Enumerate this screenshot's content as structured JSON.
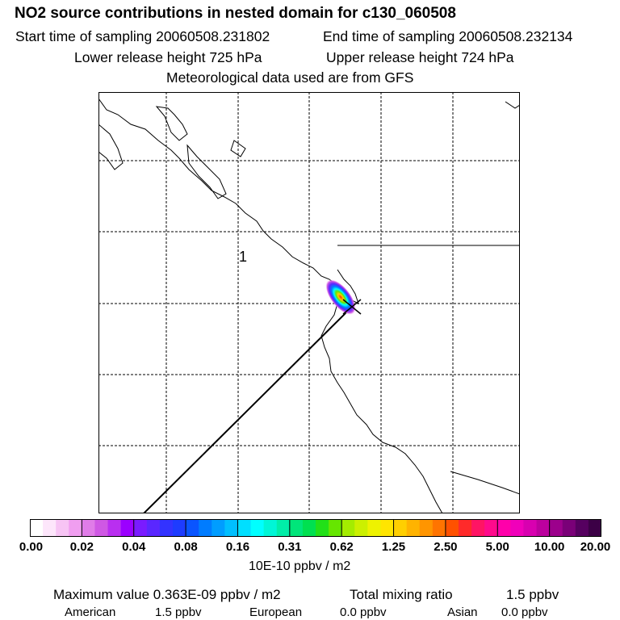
{
  "header": {
    "title": "NO2 source contributions in nested domain for c130_060508",
    "start_label": "Start time of sampling 20060508.231802",
    "end_label": "End time of sampling 20060508.232134",
    "lower_label": "Lower release height  725 hPa",
    "upper_label": "Upper release height  724 hPa",
    "met_label": "Meteorological data used are from GFS"
  },
  "map": {
    "region_marker": "1"
  },
  "colorbar": {
    "tick_labels": [
      "0.00",
      "0.02",
      "0.04",
      "0.08",
      "0.16",
      "0.31",
      "0.62",
      "1.25",
      "2.50",
      "5.00",
      "10.00",
      "20.00"
    ],
    "unit": "10E-10 ppbv / m2",
    "colors": [
      "#ffffff",
      "#fde6fb",
      "#f7c4f4",
      "#f09ef0",
      "#e07ce8",
      "#cf58e4",
      "#b92ff0",
      "#9b00ff",
      "#7a1bff",
      "#5a27ff",
      "#3333ff",
      "#1e3cff",
      "#0a55ff",
      "#007cff",
      "#009dff",
      "#00bfff",
      "#00dfff",
      "#00ffff",
      "#00f6d6",
      "#00eea8",
      "#00e57a",
      "#00e050",
      "#22e018",
      "#66e600",
      "#a4ec00",
      "#ccf000",
      "#eef200",
      "#ffe500",
      "#ffcf00",
      "#ffb300",
      "#ff9500",
      "#ff7400",
      "#ff5100",
      "#ff2a2a",
      "#ff1464",
      "#ff0a8c",
      "#ff00aa",
      "#f000ba",
      "#d800b0",
      "#bc009e",
      "#9c008c",
      "#7a0078",
      "#560060",
      "#3c0046"
    ]
  },
  "summary": {
    "max_label": "Maximum value  0.363E-09 ppbv / m2",
    "total_label": "Total mixing ratio",
    "total_value": "1.5 ppbv"
  },
  "sources": [
    {
      "name": "American",
      "value": "1.5 ppbv"
    },
    {
      "name": "European",
      "value": "0.0 ppbv"
    },
    {
      "name": "Asian",
      "value": "0.0 ppbv"
    }
  ]
}
